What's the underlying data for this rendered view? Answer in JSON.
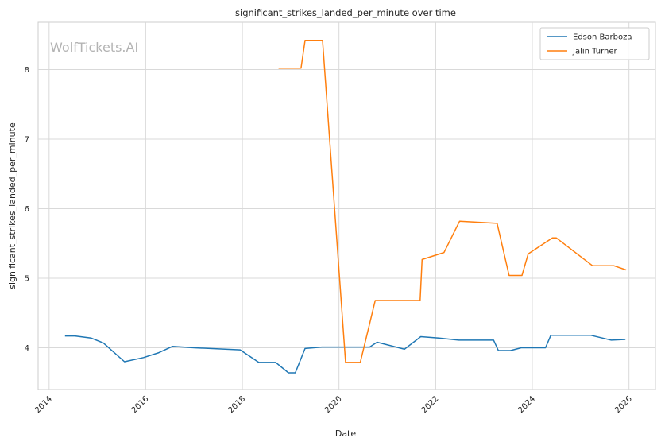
{
  "chart_data": {
    "type": "line",
    "title": "significant_strikes_landed_per_minute over time",
    "xlabel": "Date",
    "ylabel": "significant_strikes_landed_per_minute",
    "watermark": "WolfTickets.AI",
    "x_ticks": [
      "2014",
      "2016",
      "2018",
      "2020",
      "2022",
      "2024",
      "2026"
    ],
    "y_ticks": [
      "4",
      "5",
      "6",
      "7",
      "8"
    ],
    "xlim": [
      "2013-10-10",
      "2026-07-20"
    ],
    "ylim": [
      3.4,
      8.68
    ],
    "grid": true,
    "legend_position": "top-right",
    "colors": {
      "Edson Barboza": "#1f77b4",
      "Jalin Turner": "#ff7f0e"
    },
    "series": [
      {
        "name": "Edson Barboza",
        "color": "#1f77b4",
        "points": [
          [
            "2014-05-01",
            4.17
          ],
          [
            "2014-07-15",
            4.17
          ],
          [
            "2014-11-15",
            4.14
          ],
          [
            "2015-02-15",
            4.07
          ],
          [
            "2015-07-25",
            3.8
          ],
          [
            "2015-12-15",
            3.86
          ],
          [
            "2016-04-10",
            3.93
          ],
          [
            "2016-07-20",
            4.02
          ],
          [
            "2017-01-01",
            4.0
          ],
          [
            "2017-12-15",
            3.97
          ],
          [
            "2018-05-05",
            3.79
          ],
          [
            "2018-09-10",
            3.79
          ],
          [
            "2018-12-15",
            3.64
          ],
          [
            "2019-02-05",
            3.64
          ],
          [
            "2019-04-20",
            3.99
          ],
          [
            "2019-08-25",
            4.01
          ],
          [
            "2020-08-20",
            4.01
          ],
          [
            "2020-10-15",
            4.08
          ],
          [
            "2021-05-10",
            3.98
          ],
          [
            "2021-09-10",
            4.16
          ],
          [
            "2022-01-25",
            4.14
          ],
          [
            "2022-06-25",
            4.11
          ],
          [
            "2023-03-15",
            4.11
          ],
          [
            "2023-04-20",
            3.96
          ],
          [
            "2023-07-20",
            3.96
          ],
          [
            "2023-10-10",
            4.0
          ],
          [
            "2024-04-10",
            4.0
          ],
          [
            "2024-05-20",
            4.18
          ],
          [
            "2025-03-20",
            4.18
          ],
          [
            "2025-08-20",
            4.11
          ],
          [
            "2025-12-05",
            4.12
          ]
        ]
      },
      {
        "name": "Jalin Turner",
        "color": "#ff7f0e",
        "points": [
          [
            "2018-10-01",
            8.02
          ],
          [
            "2019-03-20",
            8.02
          ],
          [
            "2019-04-20",
            8.42
          ],
          [
            "2019-08-30",
            8.42
          ],
          [
            "2020-02-20",
            3.79
          ],
          [
            "2020-06-10",
            3.79
          ],
          [
            "2020-10-01",
            4.68
          ],
          [
            "2021-09-05",
            4.68
          ],
          [
            "2021-09-20",
            5.27
          ],
          [
            "2022-03-05",
            5.37
          ],
          [
            "2022-07-01",
            5.82
          ],
          [
            "2023-04-10",
            5.79
          ],
          [
            "2023-07-10",
            5.04
          ],
          [
            "2023-10-15",
            5.04
          ],
          [
            "2023-12-01",
            5.35
          ],
          [
            "2024-06-01",
            5.58
          ],
          [
            "2024-07-01",
            5.58
          ],
          [
            "2025-04-01",
            5.18
          ],
          [
            "2025-09-10",
            5.18
          ],
          [
            "2025-12-10",
            5.12
          ]
        ]
      }
    ]
  }
}
